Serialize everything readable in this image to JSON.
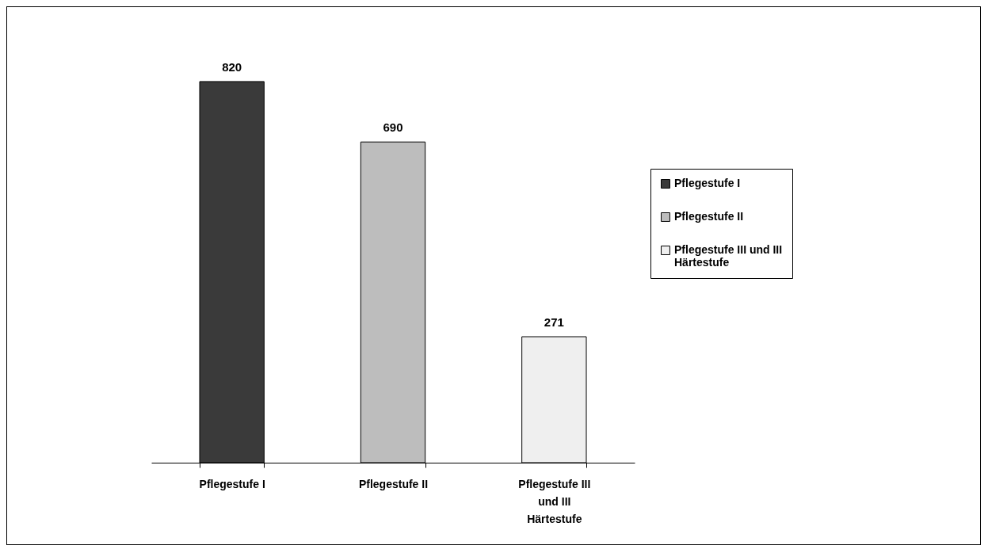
{
  "chart_data": {
    "type": "bar",
    "categories": [
      "Pflegestufe I",
      "Pflegestufe II",
      "Pflegestufe III und III Härtestufe"
    ],
    "series": [
      {
        "name": "Pflegestufe I",
        "color": "#3a3a3a",
        "values": [
          820,
          null,
          null
        ]
      },
      {
        "name": "Pflegestufe II",
        "color": "#bdbdbd",
        "values": [
          null,
          690,
          null
        ]
      },
      {
        "name": "Pflegestufe III und III Härtestufe",
        "color": "#efefef",
        "values": [
          null,
          null,
          271
        ]
      }
    ],
    "data_labels": true,
    "legend": "right",
    "grid": false
  }
}
